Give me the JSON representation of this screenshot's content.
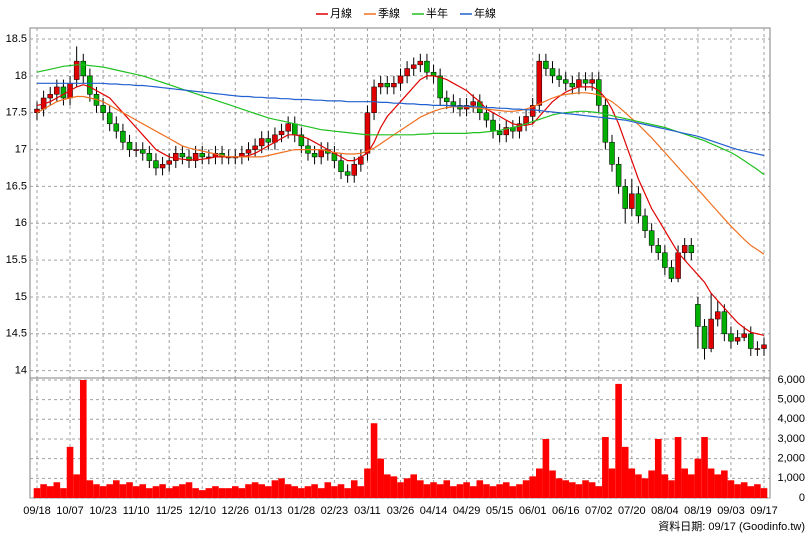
{
  "chart_data": [
    {
      "type": "candlestick",
      "up_color": "#e00000",
      "down_color": "#00b000",
      "wick_color": "#000000",
      "grid": true,
      "ylim": [
        13.9,
        18.65
      ],
      "yticks": [
        14,
        14.5,
        15,
        15.5,
        16,
        16.5,
        17,
        17.5,
        18,
        18.5
      ],
      "open": [
        17.5,
        17.55,
        17.7,
        17.75,
        17.85,
        17.7,
        17.95,
        18.2,
        18.0,
        17.75,
        17.6,
        17.5,
        17.35,
        17.25,
        17.1,
        17.0,
        17.0,
        16.95,
        16.85,
        16.75,
        16.8,
        16.85,
        16.95,
        16.9,
        16.85,
        16.95,
        16.9,
        16.9,
        16.95,
        16.9,
        16.9,
        16.9,
        16.95,
        17.0,
        17.05,
        17.15,
        17.1,
        17.2,
        17.25,
        17.35,
        17.2,
        17.05,
        16.95,
        16.9,
        17.0,
        16.95,
        16.85,
        16.7,
        16.65,
        16.8,
        16.95,
        17.5,
        17.85,
        17.9,
        17.85,
        17.9,
        18.0,
        18.1,
        18.15,
        18.2,
        18.05,
        18.0,
        17.7,
        17.65,
        17.6,
        17.55,
        17.6,
        17.65,
        17.5,
        17.4,
        17.25,
        17.2,
        17.3,
        17.25,
        17.35,
        17.45,
        17.6,
        18.2,
        18.1,
        18.0,
        17.95,
        17.9,
        17.85,
        17.95,
        17.9,
        17.95,
        17.6,
        17.1,
        16.8,
        16.5,
        16.2,
        16.4,
        16.1,
        15.9,
        15.7,
        15.6,
        15.4,
        15.25,
        15.6,
        15.7,
        14.9,
        14.6,
        14.3,
        14.7,
        14.8,
        14.5,
        14.4,
        14.45,
        14.5,
        14.3,
        14.3
      ],
      "high": [
        17.65,
        17.8,
        17.85,
        17.95,
        17.95,
        18.0,
        18.4,
        18.3,
        18.1,
        17.85,
        17.7,
        17.6,
        17.45,
        17.35,
        17.2,
        17.1,
        17.1,
        17.05,
        16.95,
        16.9,
        16.95,
        17.05,
        17.05,
        17.0,
        17.05,
        17.05,
        17.0,
        17.05,
        17.05,
        17.0,
        17.0,
        17.05,
        17.1,
        17.15,
        17.25,
        17.25,
        17.3,
        17.35,
        17.45,
        17.45,
        17.3,
        17.15,
        17.05,
        17.1,
        17.1,
        17.05,
        16.95,
        16.8,
        16.9,
        17.0,
        17.6,
        17.95,
        18.0,
        18.0,
        18.0,
        18.1,
        18.2,
        18.25,
        18.3,
        18.3,
        18.15,
        18.1,
        17.8,
        17.75,
        17.7,
        17.7,
        17.75,
        17.75,
        17.6,
        17.5,
        17.35,
        17.4,
        17.4,
        17.45,
        17.55,
        17.7,
        18.3,
        18.3,
        18.2,
        18.1,
        18.05,
        18.0,
        18.05,
        18.05,
        18.05,
        18.05,
        17.7,
        17.2,
        16.9,
        16.6,
        16.6,
        16.5,
        16.2,
        16.0,
        15.8,
        15.7,
        15.5,
        15.7,
        15.8,
        15.8,
        15.0,
        14.7,
        15.05,
        14.95,
        14.9,
        14.6,
        14.55,
        14.6,
        14.6,
        14.4,
        14.45
      ],
      "low": [
        17.4,
        17.45,
        17.6,
        17.65,
        17.6,
        17.6,
        17.85,
        17.9,
        17.65,
        17.5,
        17.4,
        17.25,
        17.15,
        17.0,
        16.9,
        16.9,
        16.85,
        16.75,
        16.65,
        16.65,
        16.7,
        16.75,
        16.8,
        16.75,
        16.75,
        16.8,
        16.8,
        16.8,
        16.8,
        16.8,
        16.8,
        16.8,
        16.85,
        16.9,
        16.95,
        17.0,
        17.0,
        17.1,
        17.15,
        17.1,
        16.95,
        16.85,
        16.8,
        16.8,
        16.85,
        16.75,
        16.6,
        16.55,
        16.55,
        16.7,
        16.85,
        17.4,
        17.75,
        17.75,
        17.75,
        17.8,
        17.9,
        18.0,
        18.05,
        17.95,
        17.9,
        17.6,
        17.55,
        17.5,
        17.45,
        17.45,
        17.5,
        17.4,
        17.3,
        17.15,
        17.1,
        17.1,
        17.15,
        17.15,
        17.25,
        17.35,
        17.5,
        18.0,
        17.9,
        17.85,
        17.8,
        17.75,
        17.75,
        17.8,
        17.8,
        17.5,
        17.0,
        16.7,
        16.4,
        16.0,
        16.1,
        16.0,
        15.8,
        15.6,
        15.5,
        15.3,
        15.2,
        15.2,
        15.5,
        15.5,
        14.3,
        14.15,
        14.25,
        14.6,
        14.4,
        14.3,
        14.35,
        14.4,
        14.2,
        14.2,
        14.2
      ],
      "close": [
        17.55,
        17.7,
        17.75,
        17.85,
        17.7,
        17.9,
        18.2,
        18.0,
        17.75,
        17.6,
        17.5,
        17.35,
        17.25,
        17.1,
        17.0,
        17.0,
        16.95,
        16.85,
        16.75,
        16.8,
        16.85,
        16.95,
        16.9,
        16.85,
        16.95,
        16.9,
        16.9,
        16.95,
        16.9,
        16.9,
        16.9,
        16.95,
        17.0,
        17.05,
        17.15,
        17.1,
        17.2,
        17.25,
        17.35,
        17.2,
        17.05,
        16.95,
        16.9,
        17.0,
        16.95,
        16.85,
        16.7,
        16.65,
        16.8,
        16.9,
        17.5,
        17.85,
        17.9,
        17.85,
        17.9,
        18.0,
        18.1,
        18.15,
        18.2,
        18.05,
        18.0,
        17.7,
        17.65,
        17.6,
        17.55,
        17.6,
        17.65,
        17.5,
        17.4,
        17.25,
        17.2,
        17.3,
        17.25,
        17.35,
        17.45,
        17.6,
        18.2,
        18.1,
        18.0,
        17.95,
        17.9,
        17.85,
        17.95,
        17.9,
        17.95,
        17.6,
        17.1,
        16.8,
        16.5,
        16.2,
        16.4,
        16.1,
        15.9,
        15.7,
        15.6,
        15.4,
        15.25,
        15.6,
        15.7,
        15.6,
        14.6,
        14.3,
        14.7,
        14.8,
        14.5,
        14.4,
        14.45,
        14.5,
        14.3,
        14.3,
        14.35
      ],
      "series": [
        {
          "name": "月線",
          "color": "#e00000",
          "values": [
            17.6,
            17.62,
            17.65,
            17.7,
            17.75,
            17.8,
            17.85,
            17.88,
            17.85,
            17.8,
            17.75,
            17.7,
            17.6,
            17.5,
            17.4,
            17.3,
            17.2,
            17.1,
            17.0,
            16.95,
            16.9,
            16.88,
            16.87,
            16.86,
            16.86,
            16.87,
            16.88,
            16.9,
            16.9,
            16.9,
            16.9,
            16.9,
            16.92,
            16.95,
            17.0,
            17.05,
            17.1,
            17.15,
            17.2,
            17.2,
            17.18,
            17.15,
            17.1,
            17.05,
            17.0,
            16.95,
            16.9,
            16.85,
            16.85,
            16.9,
            16.95,
            17.1,
            17.3,
            17.45,
            17.55,
            17.65,
            17.75,
            17.85,
            17.95,
            18.0,
            18.0,
            17.98,
            17.95,
            17.9,
            17.85,
            17.8,
            17.72,
            17.65,
            17.55,
            17.5,
            17.45,
            17.4,
            17.35,
            17.33,
            17.33,
            17.35,
            17.45,
            17.55,
            17.65,
            17.72,
            17.78,
            17.82,
            17.85,
            17.85,
            17.85,
            17.8,
            17.7,
            17.55,
            17.35,
            17.1,
            16.85,
            16.6,
            16.4,
            16.2,
            16.05,
            15.9,
            15.75,
            15.6,
            15.5,
            15.4,
            15.3,
            15.2,
            15.05,
            14.95,
            14.85,
            14.75,
            14.65,
            14.58,
            14.52,
            14.5,
            14.48
          ]
        },
        {
          "name": "季線",
          "color": "#f07020",
          "values": [
            17.5,
            17.55,
            17.6,
            17.65,
            17.68,
            17.7,
            17.72,
            17.72,
            17.7,
            17.68,
            17.65,
            17.6,
            17.55,
            17.5,
            17.45,
            17.4,
            17.35,
            17.3,
            17.25,
            17.2,
            17.15,
            17.1,
            17.05,
            17.02,
            17.0,
            16.98,
            16.96,
            16.94,
            16.92,
            16.9,
            16.9,
            16.9,
            16.9,
            16.9,
            16.9,
            16.92,
            16.94,
            16.96,
            16.98,
            17.0,
            17.0,
            17.0,
            17.0,
            17.0,
            16.98,
            16.96,
            16.95,
            16.94,
            16.94,
            16.95,
            16.98,
            17.02,
            17.08,
            17.14,
            17.2,
            17.26,
            17.32,
            17.38,
            17.44,
            17.48,
            17.52,
            17.55,
            17.57,
            17.58,
            17.58,
            17.58,
            17.57,
            17.56,
            17.55,
            17.54,
            17.53,
            17.52,
            17.52,
            17.53,
            17.55,
            17.58,
            17.62,
            17.66,
            17.7,
            17.73,
            17.75,
            17.76,
            17.77,
            17.77,
            17.76,
            17.74,
            17.7,
            17.65,
            17.58,
            17.5,
            17.42,
            17.34,
            17.25,
            17.16,
            17.06,
            16.96,
            16.86,
            16.76,
            16.66,
            16.56,
            16.46,
            16.36,
            16.26,
            16.16,
            16.06,
            15.96,
            15.87,
            15.78,
            15.7,
            15.64,
            15.58
          ]
        },
        {
          "name": "半年",
          "color": "#20c020",
          "values": [
            18.05,
            18.07,
            18.09,
            18.11,
            18.13,
            18.14,
            18.15,
            18.15,
            18.14,
            18.13,
            18.12,
            18.1,
            18.08,
            18.06,
            18.04,
            18.02,
            18.0,
            17.97,
            17.94,
            17.91,
            17.88,
            17.85,
            17.82,
            17.79,
            17.76,
            17.73,
            17.7,
            17.67,
            17.64,
            17.61,
            17.58,
            17.55,
            17.52,
            17.49,
            17.46,
            17.43,
            17.41,
            17.39,
            17.37,
            17.35,
            17.33,
            17.31,
            17.29,
            17.27,
            17.26,
            17.25,
            17.24,
            17.23,
            17.22,
            17.21,
            17.2,
            17.2,
            17.2,
            17.2,
            17.2,
            17.2,
            17.2,
            17.2,
            17.21,
            17.21,
            17.22,
            17.22,
            17.22,
            17.22,
            17.22,
            17.22,
            17.23,
            17.23,
            17.24,
            17.25,
            17.26,
            17.28,
            17.3,
            17.32,
            17.35,
            17.38,
            17.41,
            17.44,
            17.47,
            17.49,
            17.5,
            17.51,
            17.52,
            17.52,
            17.51,
            17.5,
            17.48,
            17.46,
            17.44,
            17.42,
            17.4,
            17.38,
            17.36,
            17.34,
            17.32,
            17.3,
            17.27,
            17.24,
            17.21,
            17.18,
            17.15,
            17.12,
            17.08,
            17.04,
            17.0,
            16.96,
            16.91,
            16.85,
            16.79,
            16.73,
            16.66
          ]
        },
        {
          "name": "年線",
          "color": "#2060d0",
          "values": [
            17.9,
            17.9,
            17.9,
            17.9,
            17.9,
            17.9,
            17.9,
            17.9,
            17.9,
            17.9,
            17.9,
            17.89,
            17.89,
            17.88,
            17.88,
            17.87,
            17.87,
            17.86,
            17.85,
            17.84,
            17.83,
            17.82,
            17.81,
            17.8,
            17.79,
            17.78,
            17.77,
            17.76,
            17.75,
            17.74,
            17.73,
            17.72,
            17.72,
            17.71,
            17.71,
            17.7,
            17.7,
            17.69,
            17.69,
            17.68,
            17.68,
            17.68,
            17.67,
            17.67,
            17.66,
            17.66,
            17.66,
            17.65,
            17.65,
            17.65,
            17.65,
            17.65,
            17.64,
            17.64,
            17.63,
            17.63,
            17.62,
            17.62,
            17.61,
            17.61,
            17.6,
            17.6,
            17.6,
            17.59,
            17.59,
            17.59,
            17.58,
            17.58,
            17.57,
            17.57,
            17.56,
            17.56,
            17.55,
            17.55,
            17.54,
            17.54,
            17.53,
            17.52,
            17.51,
            17.5,
            17.49,
            17.48,
            17.47,
            17.46,
            17.45,
            17.44,
            17.43,
            17.42,
            17.41,
            17.4,
            17.38,
            17.36,
            17.34,
            17.32,
            17.3,
            17.28,
            17.26,
            17.24,
            17.22,
            17.2,
            17.18,
            17.15,
            17.12,
            17.09,
            17.06,
            17.03,
            17.0,
            16.98,
            16.96,
            16.94,
            16.92
          ]
        }
      ]
    },
    {
      "type": "bar",
      "color": "#ff0000",
      "grid": true,
      "ylim": [
        0,
        6100
      ],
      "yticks": [
        0,
        {
          "value": 1000,
          "label": "1,000"
        },
        {
          "value": 2000,
          "label": "2,000"
        },
        {
          "value": 3000,
          "label": "3,000"
        },
        {
          "value": 4000,
          "label": "4,000"
        },
        {
          "value": 5000,
          "label": "5,000"
        },
        {
          "value": 6000,
          "label": "6,000"
        }
      ],
      "categories": [
        "09/18",
        null,
        null,
        null,
        null,
        "10/07",
        null,
        null,
        null,
        null,
        "10/23",
        null,
        null,
        null,
        null,
        "11/10",
        null,
        null,
        null,
        null,
        "11/25",
        null,
        null,
        null,
        null,
        "12/10",
        null,
        null,
        null,
        null,
        "12/26",
        null,
        null,
        null,
        null,
        "01/13",
        null,
        null,
        null,
        null,
        "01/28",
        null,
        null,
        null,
        null,
        "02/23",
        null,
        null,
        null,
        null,
        "03/11",
        null,
        null,
        null,
        null,
        "03/26",
        null,
        null,
        null,
        null,
        "04/14",
        null,
        null,
        null,
        null,
        "04/29",
        null,
        null,
        null,
        null,
        "05/15",
        null,
        null,
        null,
        null,
        "06/01",
        null,
        null,
        null,
        null,
        "06/16",
        null,
        null,
        null,
        null,
        "07/02",
        null,
        null,
        null,
        null,
        "07/20",
        null,
        null,
        null,
        null,
        "08/04",
        null,
        null,
        null,
        null,
        "08/19",
        null,
        null,
        null,
        null,
        "09/03",
        null,
        null,
        null,
        null,
        "09/17"
      ],
      "values": [
        500,
        700,
        600,
        800,
        500,
        2600,
        1200,
        6000,
        900,
        700,
        600,
        700,
        900,
        700,
        800,
        600,
        700,
        500,
        600,
        700,
        500,
        600,
        700,
        800,
        500,
        400,
        500,
        600,
        500,
        500,
        600,
        500,
        700,
        800,
        700,
        600,
        900,
        1000,
        700,
        600,
        500,
        600,
        700,
        500,
        800,
        600,
        700,
        500,
        900,
        600,
        1500,
        3800,
        2000,
        1200,
        1100,
        800,
        1000,
        1200,
        900,
        700,
        800,
        700,
        900,
        600,
        700,
        800,
        600,
        900,
        700,
        600,
        700,
        800,
        600,
        700,
        900,
        1100,
        1500,
        3000,
        1400,
        1000,
        900,
        800,
        700,
        900,
        800,
        600,
        3100,
        1500,
        5800,
        2600,
        1500,
        1200,
        1000,
        1400,
        3000,
        1200,
        900,
        3100,
        1500,
        1200,
        2000,
        3100,
        1500,
        1200,
        1400,
        900,
        700,
        800,
        600,
        700,
        500
      ]
    }
  ],
  "footer": "資料日期: 09/17 (Goodinfo.tw)"
}
